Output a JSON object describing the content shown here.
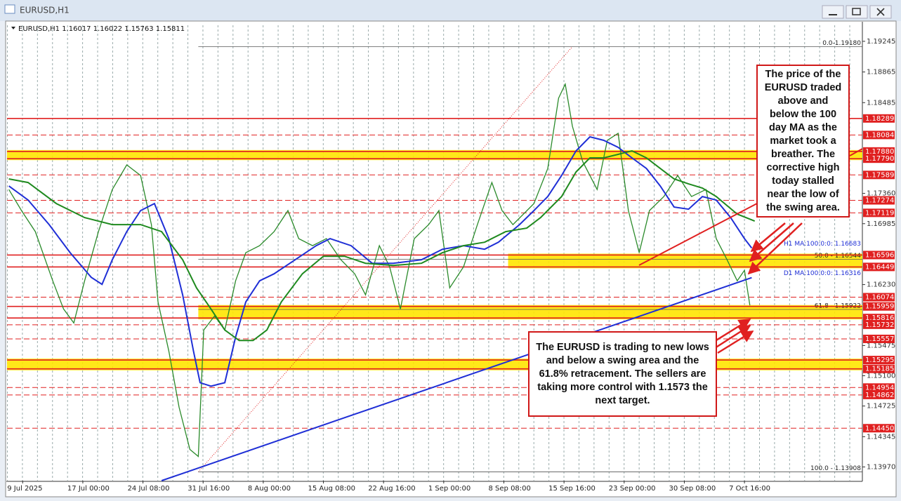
{
  "window_title": "EURUSD,H1",
  "chart_data": {
    "type": "price",
    "info": "EURUSD,H1  1.16017 1.16022 1.15763 1.15811",
    "xlim": [
      -0.26,
      13.96
    ],
    "ylim": [
      1.138,
      1.1947
    ],
    "xticks": [
      {
        "value": 0,
        "label": "9 Jul 2025"
      },
      {
        "value": 1,
        "label": "17 Jul 00:00"
      },
      {
        "value": 2,
        "label": "24 Jul 08:00"
      },
      {
        "value": 3,
        "label": "31 Jul 16:00"
      },
      {
        "value": 4,
        "label": "8 Aug 00:00"
      },
      {
        "value": 5,
        "label": "15 Aug 08:00"
      },
      {
        "value": 6,
        "label": "22 Aug 16:00"
      },
      {
        "value": 7,
        "label": "1 Sep 00:00"
      },
      {
        "value": 8,
        "label": "8 Sep 08:00"
      },
      {
        "value": 9,
        "label": "15 Sep 16:00"
      },
      {
        "value": 10,
        "label": "23 Sep 00:00"
      },
      {
        "value": 11,
        "label": "30 Sep 08:00"
      },
      {
        "value": 12,
        "label": "7 Oct 16:00"
      }
    ],
    "yticks": [
      1.19245,
      1.18865,
      1.18485,
      {
        "value": 1.1736,
        "label": "1.17360"
      },
      1.16985,
      {
        "value": 1.1623,
        "label": "1.16230"
      },
      1.15475,
      {
        "value": 1.151,
        "label": "1.15100"
      },
      1.14725,
      1.14345,
      {
        "value": 1.1397,
        "label": "1.13970"
      }
    ],
    "series": [
      {
        "color": "#2a8a2a",
        "x": [
          -0.23,
          -0.02,
          0.21,
          0.5,
          0.68,
          0.85,
          1.03,
          1.26,
          1.49,
          1.73,
          1.96,
          2.14,
          2.25,
          2.43,
          2.6,
          2.78,
          2.92,
          3.01,
          3.19,
          3.36,
          3.54,
          3.71,
          3.94,
          4.18,
          4.41,
          4.59,
          4.82,
          5.05,
          5.29,
          5.52,
          5.7,
          5.93,
          6.1,
          6.28,
          6.51,
          6.75,
          6.92,
          7.1,
          7.33,
          7.56,
          7.8,
          7.97,
          8.15,
          8.5,
          8.73,
          8.91,
          9.02,
          9.14,
          9.31,
          9.55,
          9.72,
          9.9,
          10.07,
          10.25,
          10.42,
          10.66,
          10.89,
          11.12,
          11.36,
          11.53,
          11.71,
          11.88,
          12.0,
          12.09
        ],
        "values": [
          1.17408,
          1.17147,
          1.16886,
          1.16277,
          1.15928,
          1.15754,
          1.16277,
          1.16886,
          1.17408,
          1.17713,
          1.17582,
          1.16973,
          1.16015,
          1.15406,
          1.1471,
          1.14187,
          1.141,
          1.15667,
          1.15841,
          1.15667,
          1.16277,
          1.16625,
          1.16712,
          1.16886,
          1.17147,
          1.16799,
          1.16712,
          1.16799,
          1.16538,
          1.16364,
          1.16103,
          1.16712,
          1.16451,
          1.15928,
          1.16799,
          1.16973,
          1.17147,
          1.1619,
          1.16451,
          1.16973,
          1.17495,
          1.17147,
          1.16973,
          1.17234,
          1.17669,
          1.1854,
          1.18714,
          1.18192,
          1.17756,
          1.17408,
          1.18018,
          1.18105,
          1.17147,
          1.16625,
          1.17147,
          1.17321,
          1.17582,
          1.17321,
          1.17408,
          1.16799,
          1.16538,
          1.16277,
          1.16407,
          1.15972
        ]
      },
      {
        "color": "#1f2fd6",
        "x": [
          -0.23,
          0.09,
          0.44,
          0.79,
          1.14,
          1.32,
          1.49,
          1.73,
          1.96,
          2.19,
          2.43,
          2.66,
          2.84,
          2.95,
          3.13,
          3.36,
          3.54,
          3.71,
          3.94,
          4.18,
          4.53,
          4.88,
          5.11,
          5.46,
          5.81,
          6.16,
          6.63,
          6.98,
          7.33,
          7.68,
          7.91,
          8.26,
          8.5,
          8.73,
          8.96,
          9.2,
          9.43,
          9.66,
          9.9,
          10.13,
          10.37,
          10.6,
          10.83,
          11.07,
          11.3,
          11.53,
          11.77,
          12.0,
          12.12
        ],
        "values": [
          1.17452,
          1.17278,
          1.16973,
          1.16625,
          1.1632,
          1.16233,
          1.16538,
          1.16886,
          1.17147,
          1.17234,
          1.16799,
          1.16103,
          1.15406,
          1.15014,
          1.14971,
          1.15014,
          1.1558,
          1.16015,
          1.16277,
          1.16364,
          1.16538,
          1.16712,
          1.16799,
          1.16712,
          1.16494,
          1.16494,
          1.16538,
          1.16668,
          1.16712,
          1.16668,
          1.16755,
          1.16973,
          1.17147,
          1.17321,
          1.17582,
          1.17887,
          1.18061,
          1.18018,
          1.17931,
          1.178,
          1.17669,
          1.17452,
          1.17191,
          1.17165,
          1.17321,
          1.17278,
          1.1706,
          1.16799,
          1.16683
        ]
      },
      {
        "color": "#1f8a1f",
        "x": [
          -0.23,
          0.09,
          0.56,
          1.03,
          1.49,
          1.96,
          2.31,
          2.66,
          2.89,
          3.13,
          3.36,
          3.6,
          3.83,
          4.06,
          4.3,
          4.65,
          5.0,
          5.35,
          5.7,
          6.16,
          6.63,
          6.98,
          7.33,
          7.68,
          8.03,
          8.38,
          8.61,
          8.96,
          9.2,
          9.43,
          9.66,
          9.9,
          10.13,
          10.37,
          10.6,
          10.83,
          11.07,
          11.3,
          11.53,
          11.88,
          12.17
        ],
        "values": [
          1.17539,
          1.17495,
          1.17234,
          1.1706,
          1.16973,
          1.16973,
          1.16886,
          1.16538,
          1.1619,
          1.15928,
          1.15667,
          1.15537,
          1.15537,
          1.15667,
          1.16015,
          1.16364,
          1.16581,
          1.16581,
          1.16494,
          1.16468,
          1.16494,
          1.16625,
          1.16712,
          1.16755,
          1.16886,
          1.1693,
          1.1706,
          1.17321,
          1.17626,
          1.178,
          1.178,
          1.17844,
          1.17887,
          1.178,
          1.17669,
          1.17539,
          1.17478,
          1.17426,
          1.17321,
          1.17104,
          1.17017
        ]
      },
      {
        "color": "#1f2fd6",
        "x": [
          2.31,
          12.12
        ],
        "values": [
          1.138,
          1.16316
        ]
      }
    ],
    "ma_labels": [
      {
        "text": "H1 MA:100:0:0: 1.16683",
        "value": 1.16683
      },
      {
        "text": "D1 MA:100:0:0: 1.16316",
        "value": 1.16316
      }
    ],
    "levels": [
      {
        "value": 1.18289,
        "style": "solid"
      },
      {
        "value": 1.18084,
        "style": "dashed"
      },
      {
        "value": 1.1788,
        "label": "1.17880",
        "style": "solid"
      },
      {
        "value": 1.1779,
        "label": "1.17790",
        "style": "solid"
      },
      {
        "value": 1.17589,
        "style": "dashed"
      },
      {
        "value": 1.17274,
        "style": "dashed"
      },
      {
        "value": 1.17119,
        "style": "dashed"
      },
      {
        "value": 1.16596,
        "style": "solid"
      },
      {
        "value": 1.16449,
        "style": "solid"
      },
      {
        "value": 1.16074,
        "style": "dashed"
      },
      {
        "value": 1.15959,
        "style": "solid"
      },
      {
        "value": 1.15816,
        "style": "solid"
      },
      {
        "value": 1.15732,
        "style": "dashed"
      },
      {
        "value": 1.15557,
        "style": "dashed"
      },
      {
        "value": 1.15295,
        "style": "solid"
      },
      {
        "value": 1.15185,
        "style": "solid"
      },
      {
        "value": 1.14954,
        "style": "dashed"
      },
      {
        "value": 1.14862,
        "style": "dashed"
      },
      {
        "value": 1.1445,
        "label": "1.14450",
        "style": "dashed"
      }
    ],
    "level_color": "#e02020",
    "zones": [
      {
        "top": 1.1788,
        "bottom": 1.1779
      },
      {
        "top": 1.16596,
        "bottom": 1.16449,
        "start": 8.07
      },
      {
        "top": 1.15959,
        "bottom": 1.15816,
        "start": 2.92
      },
      {
        "top": 1.15295,
        "bottom": 1.15185
      }
    ],
    "zone_color": "#ffe600",
    "fib_anchor_x": [
      2.92,
      9.14
    ],
    "fib_levels": [
      {
        "label": "0.0-1.19180",
        "value": 1.1918
      },
      {
        "label": "50.0 - 1.16544",
        "value": 1.16544
      },
      {
        "label": "61.8 - 1.15922",
        "value": 1.15922
      },
      {
        "label": "100.0 - 1.13908",
        "value": 1.13908
      }
    ],
    "annotations": [
      "The price of the EURUSD traded above and below the 100 day MA as the market took a breather.  The corrective high today stalled near the low of the swing area.",
      "The EURUSD is trading to new lows and below a swing area and the 61.8% retracement.  The sellers are taking more control with 1.1573 the next target."
    ]
  }
}
